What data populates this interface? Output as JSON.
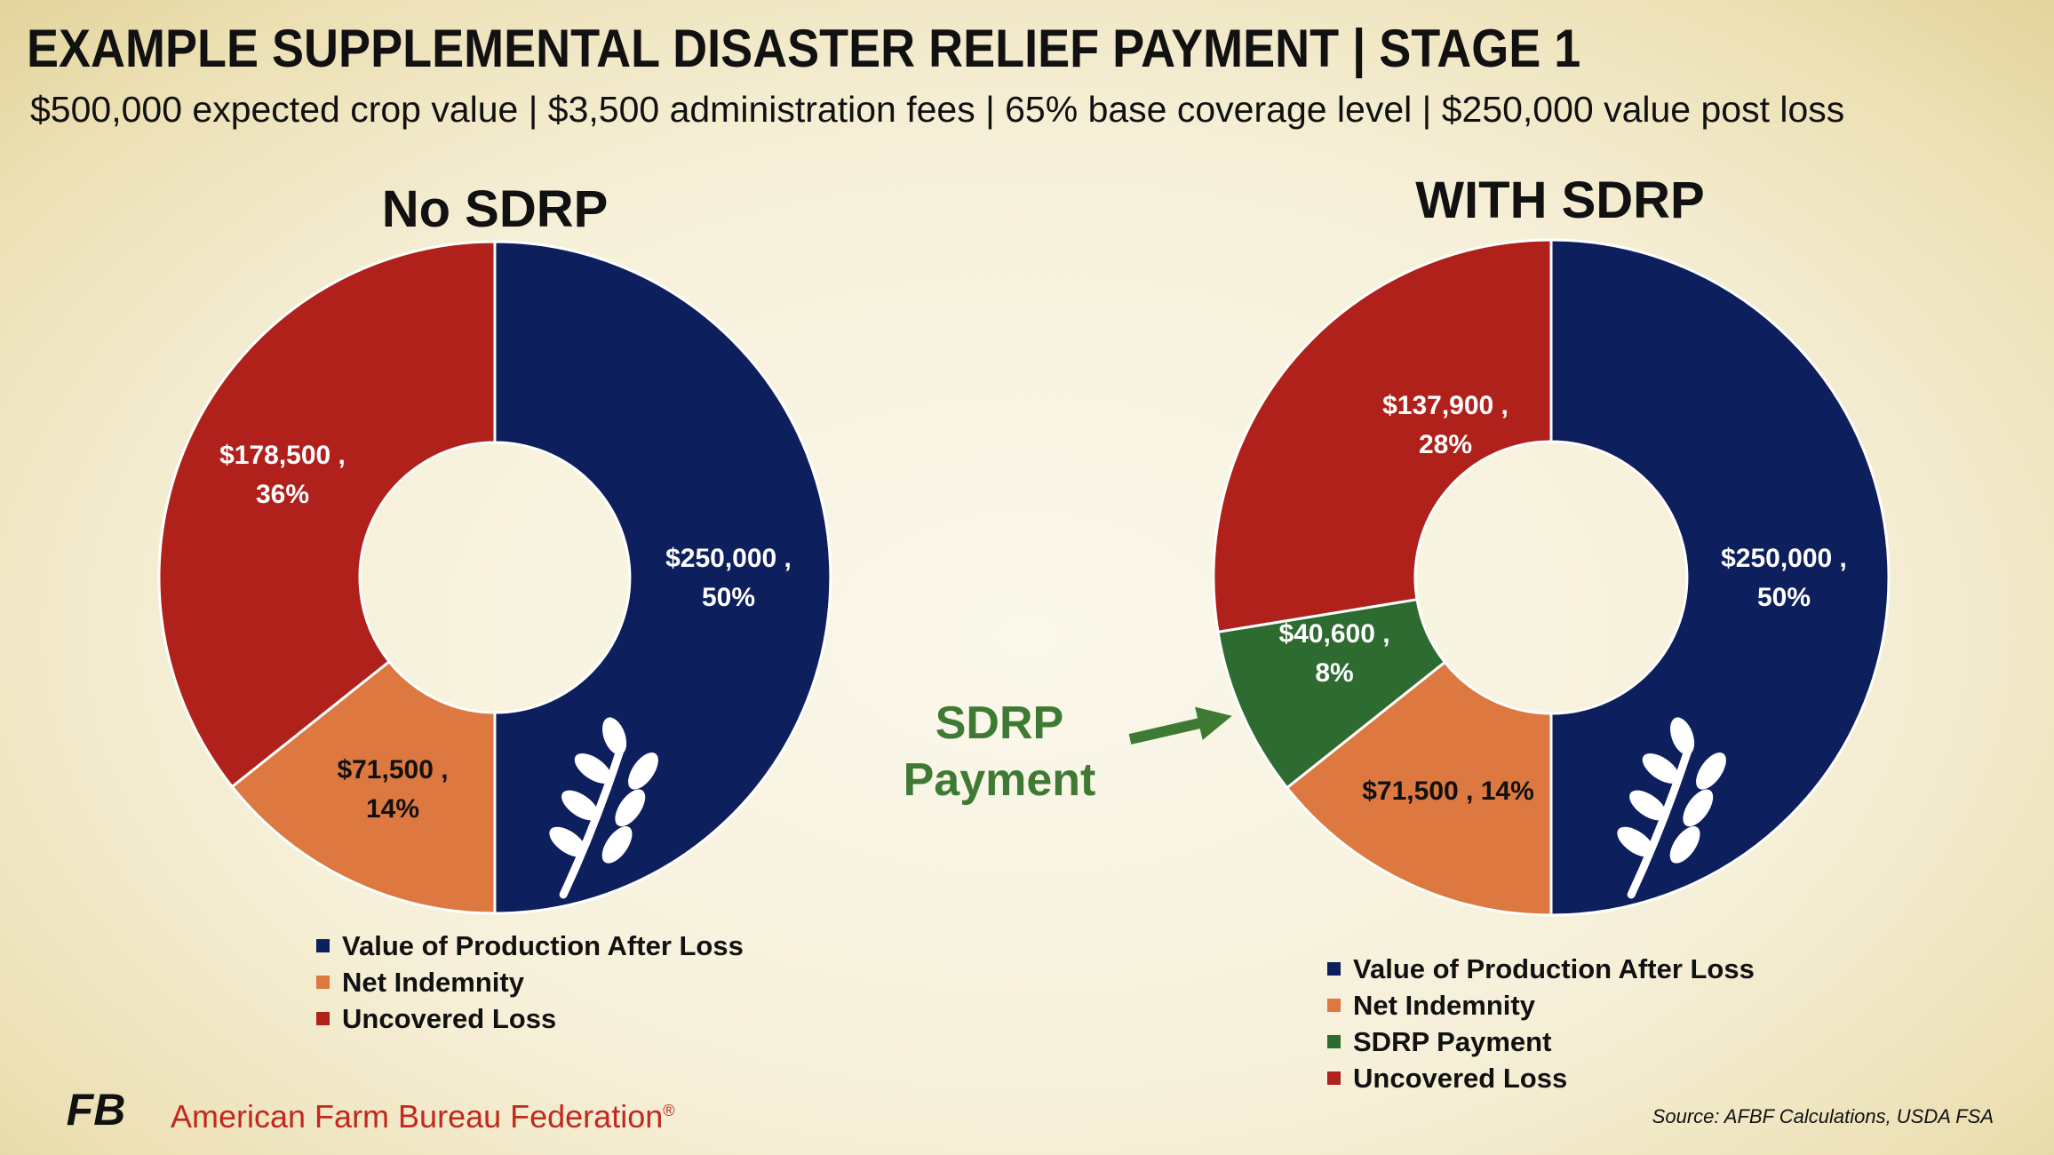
{
  "header": {
    "title": "EXAMPLE SUPPLEMENTAL DISASTER RELIEF PAYMENT | STAGE 1",
    "subtitle": "$500,000 expected crop value | $3,500 administration fees | 65% base coverage level | $250,000 value post loss"
  },
  "colors": {
    "value_after_loss": "#0d1f5c",
    "net_indemnity": "#dc7840",
    "sdrp_payment": "#2e6b30",
    "uncovered_loss": "#b0211b",
    "callout": "#3f7a35",
    "brand_red": "#c0291e"
  },
  "chart_data": [
    {
      "type": "pie",
      "title": "No SDRP",
      "categories": [
        "Value of Production After Loss",
        "Net Indemnity",
        "Uncovered Loss"
      ],
      "values": [
        250000,
        71500,
        178500
      ],
      "labels": [
        [
          "$250,000 ,",
          "50%"
        ],
        [
          "$71,500 ,",
          "14%"
        ],
        [
          "$178,500 ,",
          "36%"
        ]
      ],
      "legend": [
        "Value of Production After Loss",
        "Net Indemnity",
        "Uncovered Loss"
      ],
      "legend_position": "bottom",
      "icon": "wheat-icon"
    },
    {
      "type": "pie",
      "title": "WITH SDRP",
      "categories": [
        "Value of Production After Loss",
        "Net Indemnity",
        "SDRP Payment",
        "Uncovered Loss"
      ],
      "values": [
        250000,
        71500,
        40600,
        137900
      ],
      "labels": [
        [
          "$250,000 ,",
          "50%"
        ],
        [
          "$71,500 , 14%"
        ],
        [
          "$40,600 ,",
          "8%"
        ],
        [
          "$137,900 ,",
          "28%"
        ]
      ],
      "legend": [
        "Value of Production After Loss",
        "Net Indemnity",
        "SDRP Payment",
        "Uncovered Loss"
      ],
      "legend_position": "bottom",
      "icon": "wheat-icon"
    }
  ],
  "callout": {
    "line1": "SDRP",
    "line2": "Payment",
    "icon": "arrow-right-icon"
  },
  "footer": {
    "logo_text": "FB",
    "organization": "American Farm Bureau Federation",
    "trademark": "®",
    "source": "Source: AFBF Calculations, USDA FSA"
  }
}
